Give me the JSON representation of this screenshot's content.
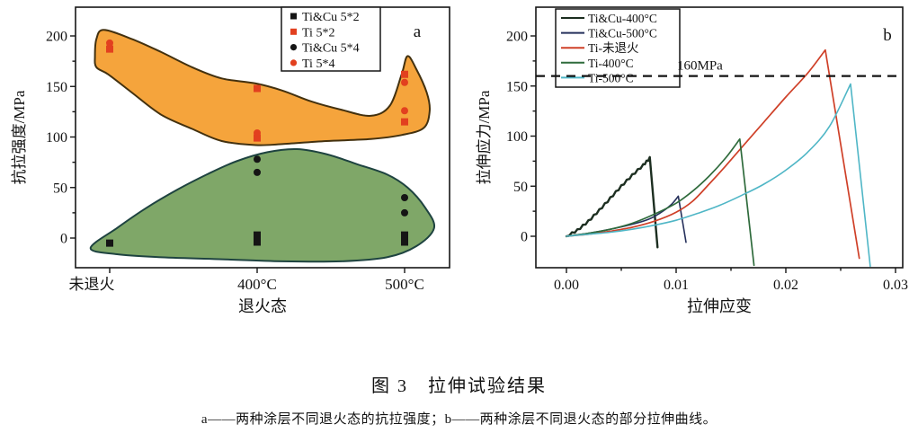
{
  "figure": {
    "caption_title": "图 3　拉伸试验结果",
    "caption_note": "a——两种涂层不同退火态的抗拉强度；b——两种涂层不同退火态的部分拉伸曲线。"
  },
  "chart_data": [
    {
      "id": "a",
      "type": "scatter",
      "panel_label": "a",
      "xlabel": "退火态",
      "ylabel": "抗拉强度/MPa",
      "categories": [
        "未退火",
        "400°C",
        "500°C"
      ],
      "yticks": [
        0,
        50,
        100,
        150,
        200
      ],
      "yminor": [
        25,
        75,
        125,
        175
      ],
      "ylim": [
        -29,
        228
      ],
      "legend_position": "top-center",
      "grid": false,
      "series": [
        {
          "name": "Ti&Cu 5*2",
          "marker": "square",
          "color": "#151515",
          "points": [
            [
              0,
              -5
            ],
            [
              1,
              3
            ],
            [
              1,
              -4
            ],
            [
              2,
              3
            ],
            [
              2,
              -4
            ]
          ]
        },
        {
          "name": "Ti 5*2",
          "marker": "square",
          "color": "#e2401f",
          "points": [
            [
              0,
              187
            ],
            [
              1,
              148
            ],
            [
              1,
              99
            ],
            [
              2,
              162
            ],
            [
              2,
              115
            ]
          ]
        },
        {
          "name": "Ti&Cu 5*4",
          "marker": "circle",
          "color": "#151515",
          "points": [
            [
              1,
              78
            ],
            [
              1,
              65
            ],
            [
              2,
              40
            ],
            [
              2,
              25
            ]
          ]
        },
        {
          "name": "Ti 5*4",
          "marker": "circle",
          "color": "#e2401f",
          "points": [
            [
              0,
              193
            ],
            [
              1,
              104
            ],
            [
              2,
              154
            ],
            [
              2,
              126
            ]
          ]
        }
      ],
      "regions": [
        {
          "name": "high-strength-region",
          "fill": "#f5a43c",
          "stroke": "#43310f",
          "points": [
            [
              -0.04,
              206
            ],
            [
              0.15,
              197
            ],
            [
              0.35,
              184
            ],
            [
              0.56,
              169
            ],
            [
              0.76,
              158
            ],
            [
              0.99,
              153
            ],
            [
              1.17,
              146
            ],
            [
              1.37,
              135
            ],
            [
              1.57,
              127
            ],
            [
              1.77,
              121
            ],
            [
              1.9,
              131
            ],
            [
              1.98,
              162
            ],
            [
              2.02,
              180
            ],
            [
              2.08,
              167
            ],
            [
              2.15,
              144
            ],
            [
              2.17,
              126
            ],
            [
              2.13,
              109
            ],
            [
              1.98,
              102
            ],
            [
              1.77,
              98
            ],
            [
              1.47,
              96
            ],
            [
              1.17,
              93
            ],
            [
              0.99,
              92
            ],
            [
              0.76,
              96
            ],
            [
              0.56,
              108
            ],
            [
              0.35,
              122
            ],
            [
              0.15,
              144
            ],
            [
              -0.01,
              162
            ],
            [
              -0.09,
              169
            ],
            [
              -0.1,
              180
            ],
            [
              -0.09,
              197
            ]
          ]
        },
        {
          "name": "low-strength-region",
          "fill": "#7fa768",
          "stroke": "#1e4340",
          "points": [
            [
              -0.13,
              -10
            ],
            [
              0.05,
              10
            ],
            [
              0.25,
              30
            ],
            [
              0.46,
              48
            ],
            [
              0.66,
              63
            ],
            [
              0.86,
              76
            ],
            [
              1.07,
              85
            ],
            [
              1.27,
              88
            ],
            [
              1.47,
              83
            ],
            [
              1.68,
              73
            ],
            [
              1.88,
              63
            ],
            [
              2.02,
              50
            ],
            [
              2.14,
              30
            ],
            [
              2.2,
              10
            ],
            [
              2.08,
              -8
            ],
            [
              1.88,
              -19
            ],
            [
              1.57,
              -23
            ],
            [
              1.17,
              -23
            ],
            [
              0.76,
              -21
            ],
            [
              0.35,
              -19
            ],
            [
              0.05,
              -16
            ]
          ]
        }
      ]
    },
    {
      "id": "b",
      "type": "line",
      "panel_label": "b",
      "xlabel": "拉伸应变",
      "ylabel": "拉伸应力/MPa",
      "xticks": [
        0,
        0.01,
        0.02,
        0.03
      ],
      "xminor": [
        0.005,
        0.015,
        0.025
      ],
      "yticks": [
        0,
        50,
        100,
        150,
        200
      ],
      "yminor": [
        25,
        75,
        125,
        175
      ],
      "xlim": [
        -0.0028,
        0.0307
      ],
      "ylim": [
        -31,
        229
      ],
      "grid": false,
      "legend_position": "top-left",
      "threshold": {
        "label": "160MPa",
        "value": 160
      },
      "series": [
        {
          "name": "Ti&Cu-400°C",
          "color": "#1c2e20",
          "width": 2.4,
          "jagged": true,
          "points": [
            [
              0,
              0
            ],
            [
              0.001,
              6
            ],
            [
              0.002,
              15
            ],
            [
              0.003,
              26
            ],
            [
              0.004,
              38
            ],
            [
              0.005,
              50
            ],
            [
              0.006,
              61
            ],
            [
              0.007,
              71
            ],
            [
              0.0076,
              78
            ],
            [
              0.0083,
              -11
            ]
          ]
        },
        {
          "name": "Ti&Cu-500°C",
          "color": "#25305b",
          "width": 1.6,
          "points": [
            [
              0,
              0
            ],
            [
              0.002,
              3
            ],
            [
              0.004,
              7
            ],
            [
              0.006,
              12
            ],
            [
              0.0075,
              17
            ],
            [
              0.0085,
              23
            ],
            [
              0.0095,
              31
            ],
            [
              0.0102,
              40
            ],
            [
              0.0109,
              -6
            ]
          ]
        },
        {
          "name": "Ti-未退火",
          "color": "#cf4028",
          "width": 1.7,
          "points": [
            [
              0,
              0
            ],
            [
              0.002,
              2
            ],
            [
              0.004,
              5
            ],
            [
              0.006,
              9
            ],
            [
              0.008,
              15
            ],
            [
              0.01,
              24
            ],
            [
              0.0115,
              35
            ],
            [
              0.013,
              52
            ],
            [
              0.0145,
              70
            ],
            [
              0.016,
              89
            ],
            [
              0.018,
              114
            ],
            [
              0.02,
              139
            ],
            [
              0.022,
              163
            ],
            [
              0.0236,
              186
            ],
            [
              0.0267,
              -22
            ]
          ]
        },
        {
          "name": "Ti-400°C",
          "color": "#2f6b3c",
          "width": 1.7,
          "points": [
            [
              0,
              0
            ],
            [
              0.002,
              3
            ],
            [
              0.004,
              7
            ],
            [
              0.006,
              13
            ],
            [
              0.008,
              22
            ],
            [
              0.01,
              33
            ],
            [
              0.0115,
              45
            ],
            [
              0.013,
              60
            ],
            [
              0.0145,
              78
            ],
            [
              0.0158,
              97
            ],
            [
              0.0171,
              -29
            ]
          ]
        },
        {
          "name": "Ti-500°C",
          "color": "#4fb6c6",
          "width": 1.6,
          "points": [
            [
              0,
              0
            ],
            [
              0.002,
              2
            ],
            [
              0.004,
              4
            ],
            [
              0.006,
              7
            ],
            [
              0.008,
              11
            ],
            [
              0.01,
              16
            ],
            [
              0.012,
              23
            ],
            [
              0.014,
              31
            ],
            [
              0.016,
              41
            ],
            [
              0.018,
              52
            ],
            [
              0.02,
              66
            ],
            [
              0.022,
              84
            ],
            [
              0.024,
              110
            ],
            [
              0.0259,
              152
            ],
            [
              0.0277,
              -30
            ]
          ]
        }
      ]
    }
  ]
}
